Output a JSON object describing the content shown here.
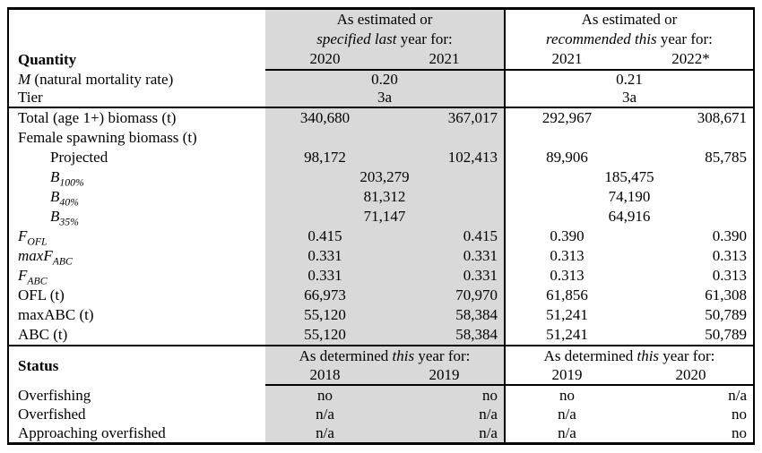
{
  "colors": {
    "shaded_column_bg": "#d9d9d9",
    "border": "#000000",
    "text": "#000000"
  },
  "table": {
    "quantity_header": "Quantity",
    "status_header": "Status",
    "groups": [
      {
        "line1": "As estimated or",
        "line2_italic": "specified last",
        "line2_rest": " year for:",
        "year1": "2020",
        "year2": "2021"
      },
      {
        "line1": "As estimated or",
        "line2_italic": "recommended this",
        "line2_rest": " year for:",
        "year1": "2021",
        "year2": "2022*"
      }
    ],
    "rows": [
      {
        "label_i": "M",
        "label": " (natural mortality rate)",
        "span": true,
        "v": [
          "0.20",
          "0.21"
        ]
      },
      {
        "label": "Tier",
        "span": true,
        "v": [
          "3a",
          "3a"
        ]
      },
      {
        "label": "Total (age 1+) biomass (t)",
        "v": [
          "340,680",
          "367,017",
          "292,967",
          "308,671"
        ]
      },
      {
        "label": "Female spawning biomass (t)",
        "v": [
          "",
          "",
          "",
          ""
        ]
      },
      {
        "label": "Projected",
        "indent": true,
        "v": [
          "98,172",
          "102,413",
          "89,906",
          "85,785"
        ]
      },
      {
        "label_i": "B",
        "label_sub": "100%",
        "indent": true,
        "span": true,
        "v": [
          "203,279",
          "185,475"
        ]
      },
      {
        "label_i": "B",
        "label_sub": "40%",
        "indent": true,
        "span": true,
        "v": [
          "81,312",
          "74,190"
        ]
      },
      {
        "label_i": "B",
        "label_sub": "35%",
        "indent": true,
        "span": true,
        "v": [
          "71,147",
          "64,916"
        ]
      },
      {
        "label_i": "F",
        "label_sub": "OFL",
        "v": [
          "0.415",
          "0.415",
          "0.390",
          "0.390"
        ]
      },
      {
        "label_i": "maxF",
        "label_sub": "ABC",
        "v": [
          "0.331",
          "0.331",
          "0.313",
          "0.313"
        ]
      },
      {
        "label_i": "F",
        "label_sub": "ABC",
        "v": [
          "0.331",
          "0.331",
          "0.313",
          "0.313"
        ]
      },
      {
        "label": "OFL (t)",
        "v": [
          "66,973",
          "70,970",
          "61,856",
          "61,308"
        ]
      },
      {
        "label": "maxABC (t)",
        "v": [
          "55,120",
          "58,384",
          "51,241",
          "50,789"
        ]
      },
      {
        "label": "ABC (t)",
        "v": [
          "55,120",
          "58,384",
          "51,241",
          "50,789"
        ]
      }
    ],
    "status_groups": [
      {
        "pre": "As determined ",
        "italic": "this",
        "rest": " year for:",
        "year1": "2018",
        "year2": "2019"
      },
      {
        "pre": "As determined ",
        "italic": "this",
        "rest": " year for:",
        "year1": "2019",
        "year2": "2020"
      }
    ],
    "status_rows": [
      {
        "label": "Overfishing",
        "v": [
          "no",
          "no",
          "no",
          "n/a"
        ]
      },
      {
        "label": "Overfished",
        "v": [
          "n/a",
          "n/a",
          "n/a",
          "no"
        ]
      },
      {
        "label": "Approaching overfished",
        "v": [
          "n/a",
          "n/a",
          "n/a",
          "no"
        ]
      }
    ]
  }
}
